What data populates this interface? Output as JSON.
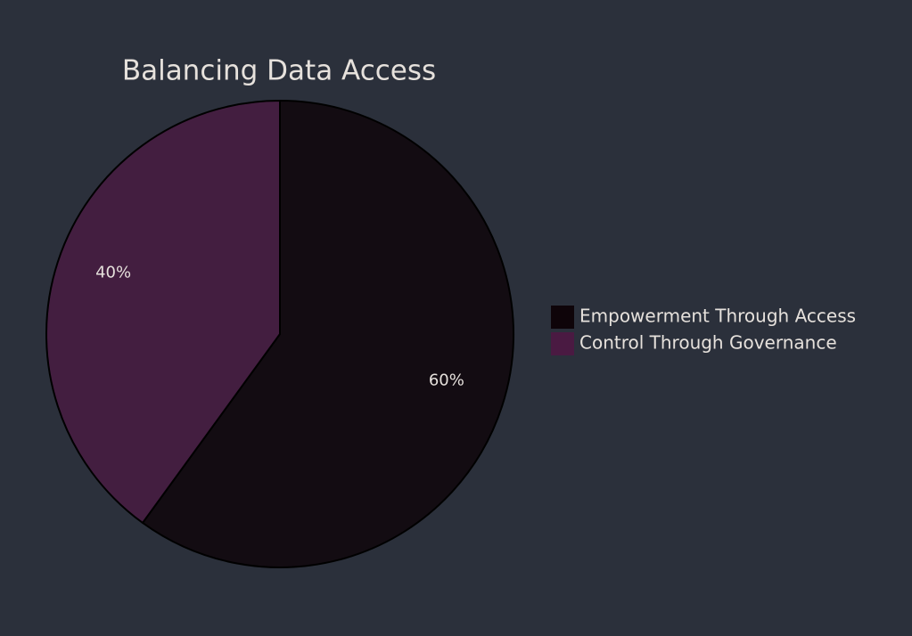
{
  "chart_data": {
    "type": "pie",
    "title": "Balancing Data Access",
    "series": [
      {
        "name": "Empowerment Through Access",
        "color": "#0e0409"
      },
      {
        "name": "Control Through Governance",
        "color": "#4a1a42"
      }
    ],
    "values": [
      60,
      40
    ],
    "value_labels": [
      "60%",
      "40%"
    ]
  }
}
